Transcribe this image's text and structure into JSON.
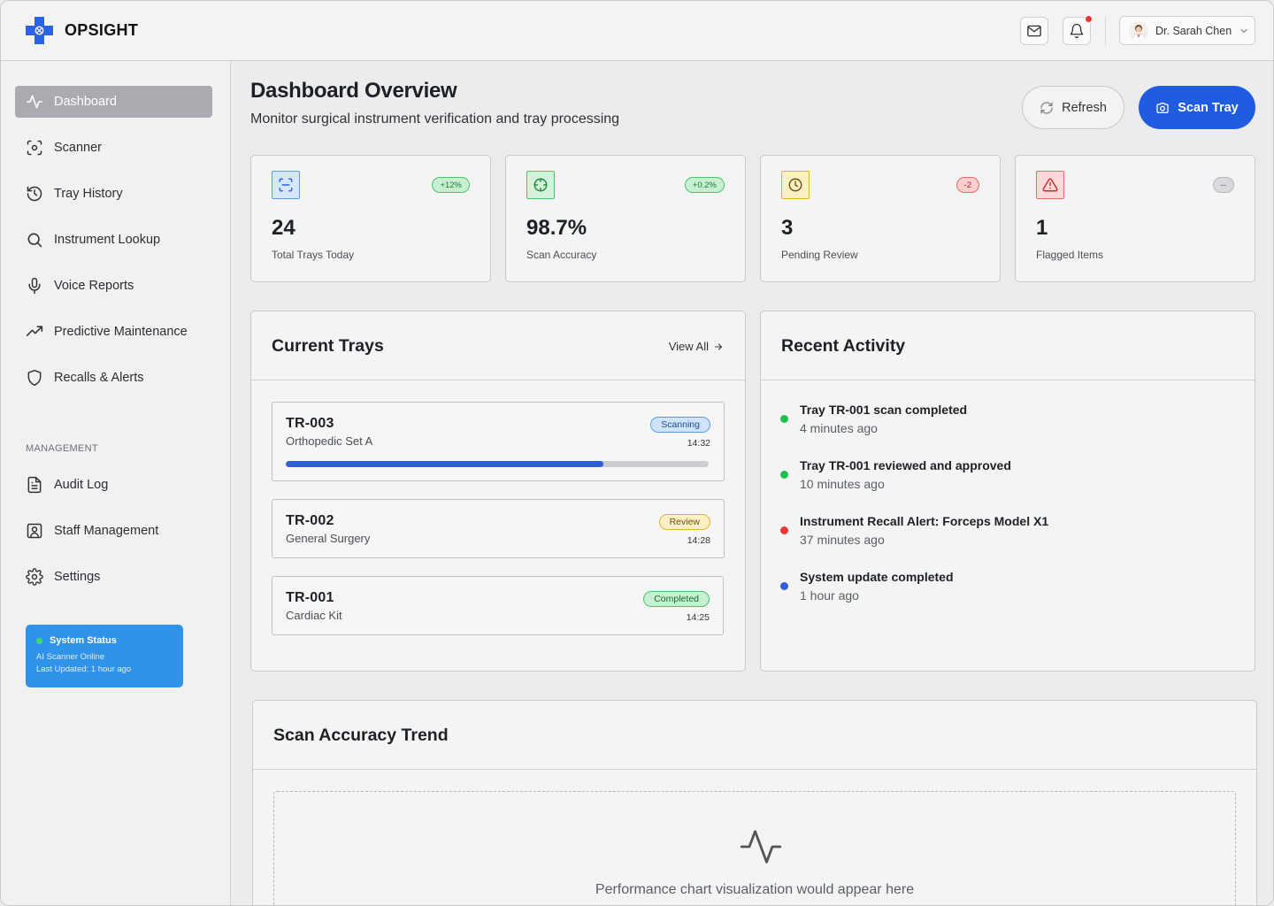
{
  "app": {
    "name": "OPSIGHT"
  },
  "header": {
    "user_name": "Dr. Sarah Chen",
    "mail_icon": "mail-icon",
    "bell_icon": "bell-icon"
  },
  "sidebar": {
    "items": [
      {
        "label": "Dashboard",
        "icon": "activity-icon",
        "active": true
      },
      {
        "label": "Scanner",
        "icon": "scan-icon"
      },
      {
        "label": "Tray History",
        "icon": "history-icon"
      },
      {
        "label": "Instrument Lookup",
        "icon": "search-icon"
      },
      {
        "label": "Voice Reports",
        "icon": "mic-icon"
      },
      {
        "label": "Predictive Maintenance",
        "icon": "trending-up-icon"
      },
      {
        "label": "Recalls & Alerts",
        "icon": "shield-icon"
      }
    ],
    "management_label": "MANAGEMENT",
    "management_items": [
      {
        "label": "Audit Log",
        "icon": "file-text-icon"
      },
      {
        "label": "Staff Management",
        "icon": "user-square-icon"
      },
      {
        "label": "Settings",
        "icon": "gear-icon"
      }
    ],
    "status": {
      "title": "System Status",
      "line1": "AI Scanner Online",
      "line2": "Last Updated: 1 hour ago"
    }
  },
  "main": {
    "title": "Dashboard Overview",
    "subtitle": "Monitor surgical instrument verification and tray processing",
    "refresh_label": "Refresh",
    "scan_label": "Scan Tray",
    "stats": [
      {
        "value": "24",
        "label": "Total Trays Today",
        "badge": "+12%",
        "icon": "scan-icon",
        "tone": "blue"
      },
      {
        "value": "98.7%",
        "label": "Scan Accuracy",
        "badge": "+0.2%",
        "icon": "target-icon",
        "tone": "green"
      },
      {
        "value": "3",
        "label": "Pending Review",
        "badge": "-2",
        "icon": "clock-icon",
        "tone": "yellow"
      },
      {
        "value": "1",
        "label": "Flagged Items",
        "badge": "--",
        "icon": "alert-triangle-icon",
        "tone": "red"
      }
    ],
    "current_trays": {
      "title": "Current Trays",
      "view_all": "View All",
      "trays": [
        {
          "id": "TR-003",
          "name": "Orthopedic Set A",
          "status": "Scanning",
          "time": "14:32",
          "progress": 0.75
        },
        {
          "id": "TR-002",
          "name": "General Surgery",
          "status": "Review",
          "time": "14:28"
        },
        {
          "id": "TR-001",
          "name": "Cardiac Kit",
          "status": "Completed",
          "time": "14:25"
        }
      ]
    },
    "recent_activity": {
      "title": "Recent Activity",
      "items": [
        {
          "title": "Tray TR-001 scan completed",
          "time": "4 minutes ago",
          "color": "#1fbf4a"
        },
        {
          "title": "Tray TR-001 reviewed and approved",
          "time": "10 minutes ago",
          "color": "#1fbf4a"
        },
        {
          "title": "Instrument Recall Alert: Forceps Model X1",
          "time": "37 minutes ago",
          "color": "#ef3434"
        },
        {
          "title": "System update completed",
          "time": "1 hour ago",
          "color": "#2f5fd3"
        }
      ]
    },
    "trend": {
      "title": "Scan Accuracy Trend",
      "placeholder": "Performance chart visualization would appear here"
    }
  },
  "colors": {
    "accent": "#1f5ce0",
    "status_card": "#2f93ea",
    "success": "#1fbf4a",
    "danger": "#ef3434"
  }
}
